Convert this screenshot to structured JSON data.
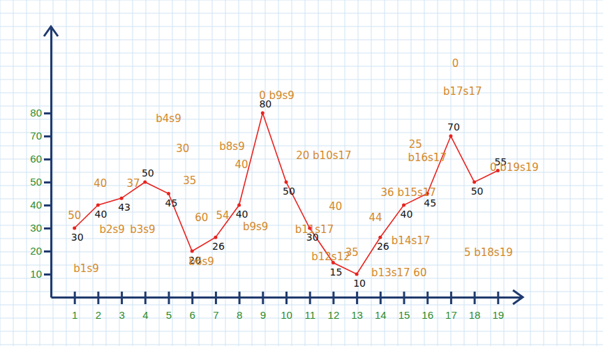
{
  "chart_data": {
    "type": "line",
    "marker": "circle",
    "data_labels": true,
    "color": "#e8231f",
    "x": [
      1,
      2,
      3,
      4,
      5,
      6,
      7,
      8,
      9,
      10,
      11,
      12,
      13,
      14,
      15,
      16,
      17,
      18,
      19
    ],
    "values": [
      30,
      40,
      43,
      50,
      45,
      20,
      26,
      40,
      80,
      50,
      30,
      15,
      10,
      26,
      40,
      45,
      70,
      50,
      55
    ],
    "xlim": [
      0,
      20
    ],
    "xticks": [
      1,
      2,
      3,
      4,
      5,
      6,
      7,
      8,
      9,
      10,
      11,
      12,
      13,
      14,
      15,
      16,
      17,
      18,
      19
    ],
    "ylim": [
      0,
      117
    ],
    "yticks": [
      10,
      20,
      30,
      40,
      50,
      60,
      70,
      80
    ],
    "annotations": [
      {
        "text": "50",
        "x": 1,
        "y": 34
      },
      {
        "text": "b1s9",
        "x": 1.5,
        "y": 11
      },
      {
        "text": "40",
        "x": 2.1,
        "y": 48
      },
      {
        "text": "b2s9",
        "x": 2.6,
        "y": 28
      },
      {
        "text": "b3s9",
        "x": 3.9,
        "y": 28
      },
      {
        "text": "37",
        "x": 3.5,
        "y": 48
      },
      {
        "text": "b4s9",
        "x": 5,
        "y": 76
      },
      {
        "text": "30",
        "x": 5.6,
        "y": 63
      },
      {
        "text": "35",
        "x": 5.9,
        "y": 49
      },
      {
        "text": "60",
        "x": 6.4,
        "y": 33
      },
      {
        "text": "54",
        "x": 7.3,
        "y": 34
      },
      {
        "text": "b6s9",
        "x": 6.4,
        "y": 14
      },
      {
        "text": "b8s9",
        "x": 7.7,
        "y": 64
      },
      {
        "text": "40",
        "x": 8.1,
        "y": 56
      },
      {
        "text": "b9s9",
        "x": 8.7,
        "y": 29
      },
      {
        "text": "0 b9s9",
        "x": 9.6,
        "y": 86
      },
      {
        "text": "20 b10s17",
        "x": 11.6,
        "y": 60
      },
      {
        "text": "40",
        "x": 12.1,
        "y": 38
      },
      {
        "text": "b11s17",
        "x": 11.2,
        "y": 28
      },
      {
        "text": "b12s12",
        "x": 11.9,
        "y": 16
      },
      {
        "text": "35",
        "x": 12.8,
        "y": 18
      },
      {
        "text": "44",
        "x": 13.8,
        "y": 33
      },
      {
        "text": "b13s17 60",
        "x": 14.8,
        "y": 9
      },
      {
        "text": "b14s17",
        "x": 15.3,
        "y": 23
      },
      {
        "text": "36 b15s17",
        "x": 15.2,
        "y": 44
      },
      {
        "text": "25",
        "x": 15.5,
        "y": 65
      },
      {
        "text": "b16s17",
        "x": 16,
        "y": 59
      },
      {
        "text": "0",
        "x": 17.2,
        "y": 100
      },
      {
        "text": "b17s17",
        "x": 17.5,
        "y": 88
      },
      {
        "text": "0 b19s19",
        "x": 19.7,
        "y": 55
      },
      {
        "text": "5 b18s19",
        "x": 18.6,
        "y": 18
      }
    ]
  }
}
